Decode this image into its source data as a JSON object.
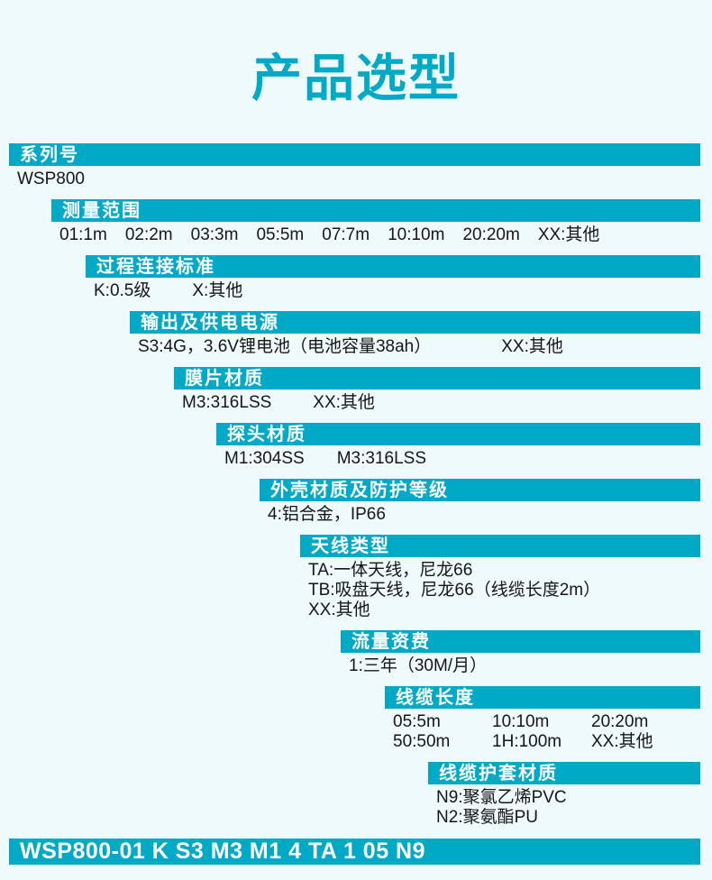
{
  "page_title": "产品选型",
  "product_code": "WSP800-01 K S3 M3 M1 4 TA 1 05 N9",
  "colors": {
    "accent": "#00a9c6",
    "background": "#eefafc",
    "bar_text": "#ffffff",
    "body_text": "#161616"
  },
  "sections": [
    {
      "id": "series-number",
      "title": "系列号",
      "lines": [
        [
          "WSP800"
        ]
      ]
    },
    {
      "id": "measuring-range",
      "title": "测量范围",
      "lines": [
        [
          "01:1m",
          "02:2m",
          "03:3m",
          "05:5m",
          "07:7m",
          "10:10m",
          "20:20m",
          "XX:其他"
        ]
      ]
    },
    {
      "id": "process-connection-standard",
      "title": "过程连接标准",
      "lines": [
        [
          "K:0.5级",
          "X:其他"
        ]
      ]
    },
    {
      "id": "output-and-power-supply",
      "title": "输出及供电电源",
      "lines": [
        [
          "S3:4G，3.6V锂电池（电池容量38ah）",
          "XX:其他"
        ]
      ]
    },
    {
      "id": "diaphragm-material",
      "title": "膜片材质",
      "lines": [
        [
          "M3:316LSS",
          "XX:其他"
        ]
      ]
    },
    {
      "id": "probe-material",
      "title": "探头材质",
      "lines": [
        [
          "M1:304SS",
          "M3:316LSS"
        ]
      ]
    },
    {
      "id": "housing-material-and-protection-rating",
      "title": "外壳材质及防护等级",
      "lines": [
        [
          "4:铝合金，IP66"
        ]
      ]
    },
    {
      "id": "antenna-type",
      "title": "天线类型",
      "lines": [
        [
          "TA:一体天线，尼龙66"
        ],
        [
          "TB:吸盘天线，尼龙66（线缆长度2m）"
        ],
        [
          "XX:其他"
        ]
      ]
    },
    {
      "id": "data-plan-fee",
      "title": "流量资费",
      "lines": [
        [
          "1:三年（30M/月）"
        ]
      ]
    },
    {
      "id": "cable-length",
      "title": "线缆长度",
      "lines": [
        [
          "05:5m",
          "10:10m",
          "20:20m"
        ],
        [
          "50:50m",
          "1H:100m",
          "XX:其他"
        ]
      ]
    },
    {
      "id": "cable-sheath-material",
      "title": "线缆护套材质",
      "lines": [
        [
          "N9:聚氯乙烯PVC"
        ],
        [
          "N2:聚氨酯PU"
        ]
      ]
    }
  ]
}
